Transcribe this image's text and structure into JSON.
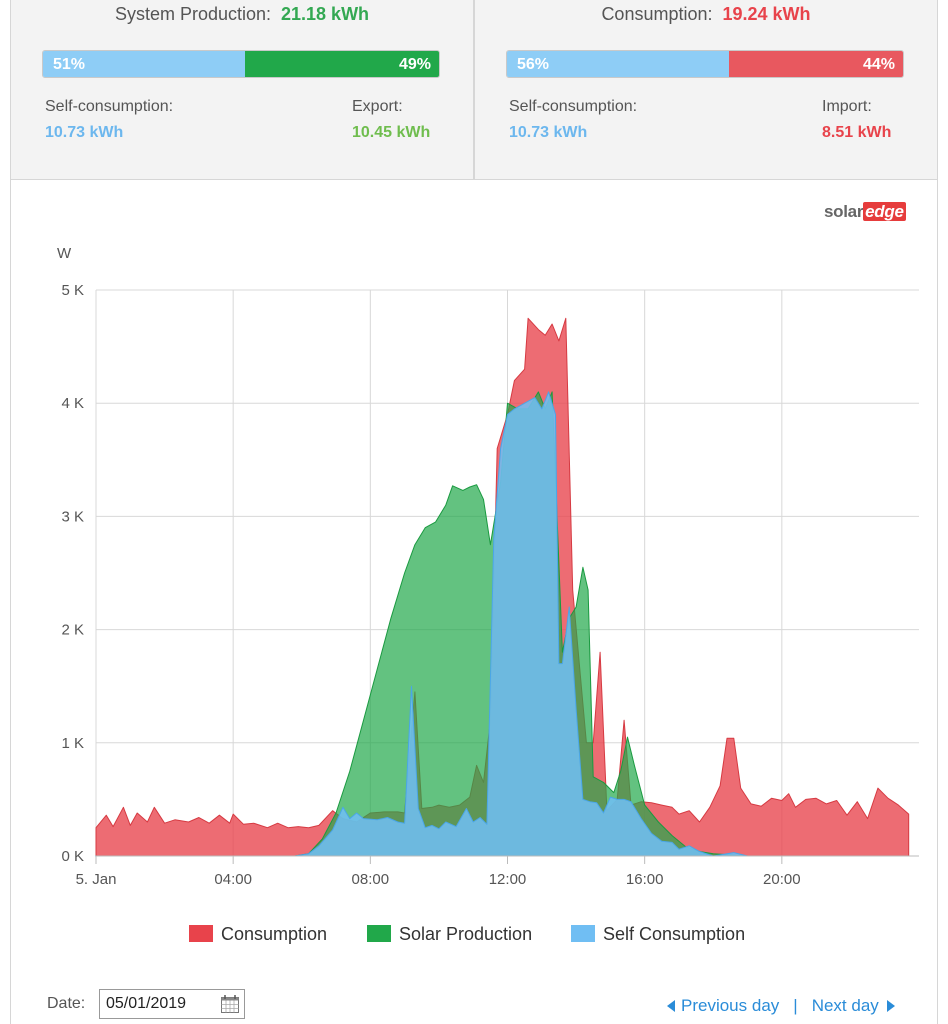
{
  "production": {
    "title": "System Production:",
    "value": "21.18 kWh",
    "bar_left_pct": "51%",
    "bar_right_pct": "49%",
    "left_label": "Self-consumption:",
    "left_value": "10.73 kWh",
    "right_label": "Export:",
    "right_value": "10.45 kWh"
  },
  "consumption": {
    "title": "Consumption:",
    "value": "19.24 kWh",
    "bar_left_pct": "56%",
    "bar_right_pct": "44%",
    "left_label": "Self-consumption:",
    "left_value": "10.73 kWh",
    "right_label": "Import:",
    "right_value": "8.51 kWh"
  },
  "logo": {
    "part1": "solar",
    "part2": "edge"
  },
  "colors": {
    "consumption": "#e8434b",
    "solar": "#21a84a",
    "self": "#70bef3",
    "self_light": "#8ecdf6",
    "green_text": "#33a852",
    "red_text": "#e8434b",
    "blue_text": "#6cb7ee",
    "export_text": "#6fbd4e"
  },
  "chart_data": {
    "type": "area",
    "ylabel": "W",
    "y_ticks": [
      "0 K",
      "1 K",
      "2 K",
      "3 K",
      "4 K",
      "5 K"
    ],
    "ylim": [
      0,
      5000
    ],
    "x_range_hours": [
      0,
      24
    ],
    "x_ticks": [
      {
        "hour": 0,
        "label": "5. Jan"
      },
      {
        "hour": 4,
        "label": "04:00"
      },
      {
        "hour": 8,
        "label": "08:00"
      },
      {
        "hour": 12,
        "label": "12:00"
      },
      {
        "hour": 16,
        "label": "16:00"
      },
      {
        "hour": 20,
        "label": "20:00"
      }
    ],
    "grid": true,
    "legend_position": "bottom",
    "series": [
      {
        "name": "Consumption",
        "points": [
          [
            0.0,
            250
          ],
          [
            0.3,
            360
          ],
          [
            0.5,
            260
          ],
          [
            0.8,
            430
          ],
          [
            1.0,
            270
          ],
          [
            1.2,
            380
          ],
          [
            1.5,
            300
          ],
          [
            1.7,
            430
          ],
          [
            2.0,
            290
          ],
          [
            2.3,
            320
          ],
          [
            2.7,
            300
          ],
          [
            3.0,
            340
          ],
          [
            3.3,
            290
          ],
          [
            3.6,
            360
          ],
          [
            3.9,
            290
          ],
          [
            4.0,
            370
          ],
          [
            4.3,
            280
          ],
          [
            4.6,
            290
          ],
          [
            5.0,
            250
          ],
          [
            5.3,
            290
          ],
          [
            5.6,
            250
          ],
          [
            5.9,
            260
          ],
          [
            6.2,
            250
          ],
          [
            6.5,
            270
          ],
          [
            6.9,
            400
          ],
          [
            7.2,
            330
          ],
          [
            7.6,
            300
          ],
          [
            8.0,
            380
          ],
          [
            8.4,
            390
          ],
          [
            8.8,
            390
          ],
          [
            9.0,
            380
          ],
          [
            9.3,
            1450
          ],
          [
            9.5,
            420
          ],
          [
            9.8,
            430
          ],
          [
            10.0,
            450
          ],
          [
            10.3,
            430
          ],
          [
            10.6,
            450
          ],
          [
            10.9,
            520
          ],
          [
            11.1,
            800
          ],
          [
            11.3,
            650
          ],
          [
            11.5,
            1200
          ],
          [
            11.7,
            3600
          ],
          [
            12.0,
            3900
          ],
          [
            12.2,
            4200
          ],
          [
            12.5,
            4300
          ],
          [
            12.6,
            4750
          ],
          [
            12.9,
            4650
          ],
          [
            13.1,
            4600
          ],
          [
            13.3,
            4700
          ],
          [
            13.5,
            4550
          ],
          [
            13.7,
            4750
          ],
          [
            13.9,
            2350
          ],
          [
            14.3,
            1000
          ],
          [
            14.5,
            1000
          ],
          [
            14.7,
            1800
          ],
          [
            14.9,
            400
          ],
          [
            15.2,
            500
          ],
          [
            15.4,
            1200
          ],
          [
            15.6,
            450
          ],
          [
            15.9,
            480
          ],
          [
            16.2,
            470
          ],
          [
            16.5,
            450
          ],
          [
            16.8,
            430
          ],
          [
            17.0,
            370
          ],
          [
            17.3,
            400
          ],
          [
            17.6,
            300
          ],
          [
            17.9,
            430
          ],
          [
            18.2,
            620
          ],
          [
            18.4,
            1040
          ],
          [
            18.6,
            1040
          ],
          [
            18.8,
            600
          ],
          [
            19.1,
            460
          ],
          [
            19.4,
            440
          ],
          [
            19.7,
            510
          ],
          [
            20.0,
            490
          ],
          [
            20.2,
            550
          ],
          [
            20.4,
            430
          ],
          [
            20.7,
            500
          ],
          [
            21.0,
            510
          ],
          [
            21.3,
            460
          ],
          [
            21.6,
            490
          ],
          [
            21.9,
            360
          ],
          [
            22.2,
            480
          ],
          [
            22.5,
            330
          ],
          [
            22.8,
            600
          ],
          [
            23.1,
            510
          ],
          [
            23.4,
            450
          ],
          [
            23.7,
            370
          ]
        ]
      },
      {
        "name": "Solar Production",
        "points": [
          [
            0.0,
            0
          ],
          [
            5.8,
            0
          ],
          [
            6.2,
            20
          ],
          [
            6.6,
            150
          ],
          [
            7.0,
            380
          ],
          [
            7.4,
            750
          ],
          [
            7.8,
            1200
          ],
          [
            8.2,
            1650
          ],
          [
            8.6,
            2100
          ],
          [
            9.0,
            2500
          ],
          [
            9.3,
            2750
          ],
          [
            9.6,
            2900
          ],
          [
            9.9,
            2950
          ],
          [
            10.2,
            3100
          ],
          [
            10.4,
            3270
          ],
          [
            10.7,
            3230
          ],
          [
            10.9,
            3260
          ],
          [
            11.1,
            3280
          ],
          [
            11.3,
            3150
          ],
          [
            11.5,
            2750
          ],
          [
            11.8,
            3300
          ],
          [
            12.0,
            4000
          ],
          [
            12.3,
            3950
          ],
          [
            12.6,
            3950
          ],
          [
            12.9,
            4100
          ],
          [
            13.1,
            3950
          ],
          [
            13.3,
            4100
          ],
          [
            13.6,
            1800
          ],
          [
            13.8,
            2100
          ],
          [
            14.0,
            2200
          ],
          [
            14.2,
            2550
          ],
          [
            14.35,
            2350
          ],
          [
            14.5,
            700
          ],
          [
            14.8,
            650
          ],
          [
            15.1,
            560
          ],
          [
            15.3,
            750
          ],
          [
            15.5,
            1050
          ],
          [
            15.7,
            800
          ],
          [
            16.0,
            450
          ],
          [
            16.4,
            300
          ],
          [
            16.8,
            180
          ],
          [
            17.2,
            80
          ],
          [
            17.6,
            40
          ],
          [
            18.0,
            20
          ],
          [
            18.5,
            10
          ],
          [
            19.0,
            0
          ],
          [
            23.7,
            0
          ]
        ]
      },
      {
        "name": "Self Consumption",
        "points": [
          [
            0.0,
            0
          ],
          [
            5.8,
            0
          ],
          [
            6.2,
            20
          ],
          [
            6.5,
            90
          ],
          [
            6.9,
            230
          ],
          [
            7.2,
            430
          ],
          [
            7.4,
            330
          ],
          [
            7.6,
            380
          ],
          [
            7.8,
            330
          ],
          [
            8.2,
            320
          ],
          [
            8.5,
            340
          ],
          [
            8.8,
            300
          ],
          [
            9.0,
            290
          ],
          [
            9.2,
            1500
          ],
          [
            9.4,
            420
          ],
          [
            9.6,
            250
          ],
          [
            9.8,
            270
          ],
          [
            10.0,
            240
          ],
          [
            10.2,
            300
          ],
          [
            10.5,
            260
          ],
          [
            10.8,
            420
          ],
          [
            11.0,
            300
          ],
          [
            11.2,
            340
          ],
          [
            11.4,
            280
          ],
          [
            11.6,
            2800
          ],
          [
            11.8,
            3600
          ],
          [
            12.0,
            3900
          ],
          [
            12.2,
            3950
          ],
          [
            12.5,
            4000
          ],
          [
            12.8,
            4050
          ],
          [
            13.0,
            3950
          ],
          [
            13.2,
            4100
          ],
          [
            13.4,
            3900
          ],
          [
            13.5,
            1700
          ],
          [
            13.6,
            1700
          ],
          [
            13.8,
            2200
          ],
          [
            14.0,
            1300
          ],
          [
            14.2,
            500
          ],
          [
            14.4,
            480
          ],
          [
            14.6,
            470
          ],
          [
            14.8,
            380
          ],
          [
            15.0,
            520
          ],
          [
            15.2,
            500
          ],
          [
            15.4,
            500
          ],
          [
            15.6,
            480
          ],
          [
            15.9,
            330
          ],
          [
            16.2,
            200
          ],
          [
            16.5,
            130
          ],
          [
            16.8,
            120
          ],
          [
            17.0,
            60
          ],
          [
            17.3,
            90
          ],
          [
            17.6,
            40
          ],
          [
            18.0,
            0
          ],
          [
            18.6,
            30
          ],
          [
            19.0,
            0
          ],
          [
            23.7,
            0
          ]
        ]
      }
    ]
  },
  "legend": {
    "consumption": "Consumption",
    "solar": "Solar Production",
    "self": "Self Consumption"
  },
  "footer": {
    "date_label": "Date:",
    "date_value": "05/01/2019",
    "prev_label": "Previous day",
    "separator": "|",
    "next_label": "Next day"
  }
}
